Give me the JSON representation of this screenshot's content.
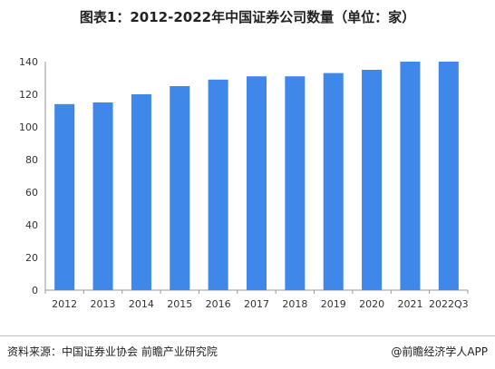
{
  "header": {
    "title": "图表1：2012-2022年中国证券公司数量（单位：家）"
  },
  "footer": {
    "source": "资料来源：中国证券业协会 前瞻产业研究院",
    "brand": "@前瞻经济学人APP"
  },
  "colors": {
    "bar": "#3f87e8",
    "axis": "#999999",
    "text": "#333333"
  },
  "chart_data": {
    "type": "bar",
    "title": "图表1：2012-2022年中国证券公司数量（单位：家）",
    "categories": [
      "2012",
      "2013",
      "2014",
      "2015",
      "2016",
      "2017",
      "2018",
      "2019",
      "2020",
      "2021",
      "2022Q3"
    ],
    "values": [
      114,
      115,
      120,
      125,
      129,
      131,
      131,
      133,
      135,
      140,
      140
    ],
    "ylim": [
      0,
      140
    ],
    "yticks": [
      0,
      20,
      40,
      60,
      80,
      100,
      120,
      140
    ],
    "xlabel": "",
    "ylabel": "",
    "grid": false,
    "legend": "none"
  }
}
